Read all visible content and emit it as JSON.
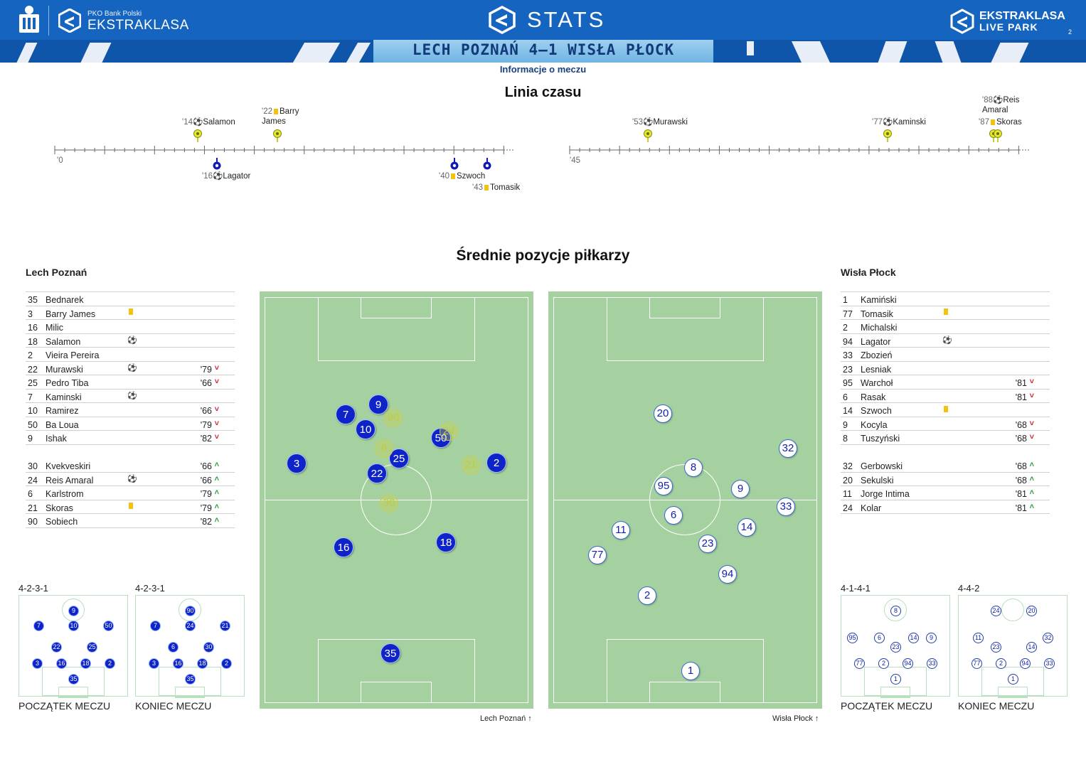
{
  "header": {
    "brand_small": "PKO Bank Polski",
    "brand_league": "EKSTRAKLASA",
    "stats_title": "STATS",
    "right_line1": "EKSTRAKLASA",
    "right_line2": "LIVE PARK",
    "page_no": "2",
    "score_title": "LECH POZNAŃ 4–1 WISŁA PŁOCK"
  },
  "subtitle": "Informacje o meczu",
  "timeline": {
    "title": "Linia czasu",
    "first_half_start": "'0",
    "second_half_start": "'45",
    "events": [
      {
        "min": "'14",
        "icon": "ball-icon",
        "player": "Salamon",
        "team": "home"
      },
      {
        "min": "'22",
        "icon": "yellow-card-icon",
        "player": "Barry James",
        "team": "home"
      },
      {
        "min": "'16",
        "icon": "ball-icon",
        "player": "Lagator",
        "team": "away"
      },
      {
        "min": "'40",
        "icon": "yellow-card-icon",
        "player": "Szwoch",
        "team": "away"
      },
      {
        "min": "'43",
        "icon": "yellow-card-icon",
        "player": "Tomasik",
        "team": "away"
      },
      {
        "min": "'53",
        "icon": "ball-icon",
        "player": "Murawski",
        "team": "home"
      },
      {
        "min": "'77",
        "icon": "ball-icon",
        "player": "Kaminski",
        "team": "home"
      },
      {
        "min": "'87",
        "icon": "yellow-card-icon",
        "player": "Skoras",
        "team": "home"
      },
      {
        "min": "'88",
        "icon": "ball-icon",
        "player": "Reis Amaral",
        "team": "home"
      }
    ]
  },
  "positions_title": "Średnie pozycje piłkarzy",
  "home": {
    "name": "Lech Poznań",
    "starters": [
      {
        "num": "35",
        "name": "Bednarek",
        "event": "",
        "sub": ""
      },
      {
        "num": "3",
        "name": "Barry James",
        "event": "yellow",
        "sub": ""
      },
      {
        "num": "16",
        "name": "Milic",
        "event": "",
        "sub": ""
      },
      {
        "num": "18",
        "name": "Salamon",
        "event": "goal",
        "sub": ""
      },
      {
        "num": "2",
        "name": "Vieira Pereira",
        "event": "",
        "sub": ""
      },
      {
        "num": "22",
        "name": "Murawski",
        "event": "goal",
        "sub": "'79"
      },
      {
        "num": "25",
        "name": "Pedro Tiba",
        "event": "",
        "sub": "'66"
      },
      {
        "num": "7",
        "name": "Kaminski",
        "event": "goal",
        "sub": ""
      },
      {
        "num": "10",
        "name": "Ramirez",
        "event": "",
        "sub": "'66"
      },
      {
        "num": "50",
        "name": "Ba Loua",
        "event": "",
        "sub": "'79"
      },
      {
        "num": "9",
        "name": "Ishak",
        "event": "",
        "sub": "'82"
      }
    ],
    "subs": [
      {
        "num": "30",
        "name": "Kvekveskiri",
        "event": "",
        "sub": "'66"
      },
      {
        "num": "24",
        "name": "Reis Amaral",
        "event": "goal",
        "sub": "'66"
      },
      {
        "num": "6",
        "name": "Karlstrom",
        "event": "",
        "sub": "'79"
      },
      {
        "num": "21",
        "name": "Skoras",
        "event": "yellow",
        "sub": "'79"
      },
      {
        "num": "90",
        "name": "Sobiech",
        "event": "",
        "sub": "'82"
      }
    ],
    "pitch_caption": "Lech Poznań",
    "form_start": "4-2-3-1",
    "form_end": "4-2-3-1"
  },
  "away": {
    "name": "Wisła Płock",
    "starters": [
      {
        "num": "1",
        "name": "Kamiński",
        "event": "",
        "sub": ""
      },
      {
        "num": "77",
        "name": "Tomasik",
        "event": "yellow",
        "sub": ""
      },
      {
        "num": "2",
        "name": "Michalski",
        "event": "",
        "sub": ""
      },
      {
        "num": "94",
        "name": "Lagator",
        "event": "goal",
        "sub": ""
      },
      {
        "num": "33",
        "name": "Zbozień",
        "event": "",
        "sub": ""
      },
      {
        "num": "23",
        "name": "Lesniak",
        "event": "",
        "sub": ""
      },
      {
        "num": "95",
        "name": "Warchoł",
        "event": "",
        "sub": "'81"
      },
      {
        "num": "6",
        "name": "Rasak",
        "event": "",
        "sub": "'81"
      },
      {
        "num": "14",
        "name": "Szwoch",
        "event": "yellow",
        "sub": ""
      },
      {
        "num": "9",
        "name": "Kocyla",
        "event": "",
        "sub": "'68"
      },
      {
        "num": "8",
        "name": "Tuszyński",
        "event": "",
        "sub": "'68"
      }
    ],
    "subs": [
      {
        "num": "32",
        "name": "Gerbowski",
        "event": "",
        "sub": "'68"
      },
      {
        "num": "20",
        "name": "Sekulski",
        "event": "",
        "sub": "'68"
      },
      {
        "num": "11",
        "name": "Jorge Intima",
        "event": "",
        "sub": "'81"
      },
      {
        "num": "24",
        "name": "Kolar",
        "event": "",
        "sub": "'81"
      }
    ],
    "pitch_caption": "Wisła Płock",
    "form_start": "4-1-4-1",
    "form_end": "4-4-2"
  },
  "captions": {
    "start": "POCZĄTEK MECZU",
    "end": "KONIEC MECZU"
  },
  "colors": {
    "header_blue": "#1565c0",
    "home_dot": "#0e23c8",
    "sub_dot": "#c9cc55",
    "yellow_card": "#f4c20d",
    "sub_off": "#d0202a",
    "sub_on": "#2a9a3a",
    "pitch": "#a5d1a1"
  }
}
